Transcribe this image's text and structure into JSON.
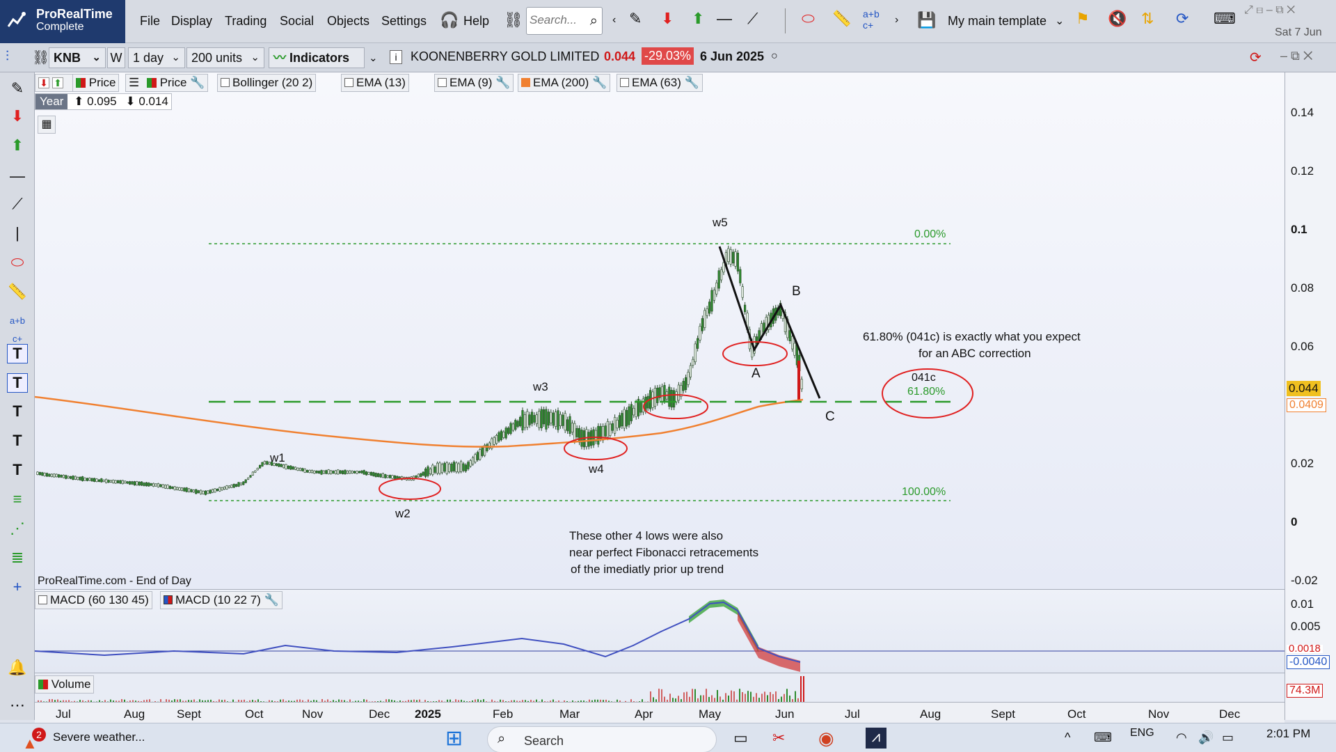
{
  "app": {
    "brand": "ProRealTime",
    "edition": "Complete"
  },
  "menu": [
    "File",
    "Display",
    "Trading",
    "Social",
    "Objects",
    "Settings"
  ],
  "help_label": "Help",
  "search_placeholder": "Search...",
  "template_label": "My main template",
  "date_label": "Sat 7 Jun",
  "toolbar": {
    "ticker": "KNB",
    "period_code": "W",
    "timeframe": "1 day",
    "units": "200 units",
    "indicators_label": "Indicators",
    "instrument_name": "KOONENBERRY GOLD LIMITED",
    "last_price": "0.044",
    "change_pct": "-29.03%",
    "bar_date": "6 Jun 2025"
  },
  "legend": {
    "price1": "Price",
    "price2": "Price",
    "bollinger": "Bollinger (20 2)",
    "ema13": "EMA (13)",
    "ema9": "EMA (9)",
    "ema200": "EMA (200)",
    "ema63": "EMA (63)"
  },
  "range_box": {
    "period": "Year",
    "high": "0.095",
    "low": "0.014"
  },
  "y_ticks": [
    "0.14",
    "0.12",
    "0.1",
    "0.08",
    "0.06",
    "0.02",
    "0",
    "-0.02"
  ],
  "price_tag": "0.044",
  "ema_tag": "0.0409",
  "source_note": "ProRealTime.com - End of Day",
  "annotations": {
    "w1": "w1",
    "w2": "w2",
    "w3": "w3",
    "w4": "w4",
    "w5": "w5",
    "A": "A",
    "B": "B",
    "C": "C",
    "fib_0": "0.00%",
    "fib_618": "61.80%",
    "fib_100": "100.00%",
    "circle_label": "041c",
    "comment1_line1": "61.80% (041c) is exactly what you expect",
    "comment1_line2": "for an ABC correction",
    "comment2_line1": "These other 4 lows were also",
    "comment2_line2": "near perfect Fibonacci retracements",
    "comment2_line3": "of the imediatly prior up trend"
  },
  "macd": {
    "legend1": "MACD (60 130 45)",
    "legend2": "MACD (10 22 7)",
    "y_ticks": [
      "0.01",
      "0.005"
    ],
    "tag1": "0.0018",
    "tag2": "-0.0040"
  },
  "volume": {
    "legend": "Volume",
    "tag": "74.3M"
  },
  "x_ticks": [
    "Jul",
    "Aug",
    "Sept",
    "Oct",
    "Nov",
    "Dec",
    "2025",
    "Feb",
    "Mar",
    "Apr",
    "May",
    "Jun",
    "Jul",
    "Aug",
    "Sept",
    "Oct",
    "Nov",
    "Dec"
  ],
  "taskbar": {
    "weather_badge": "2",
    "weather_text": "Severe weather...",
    "search_label": "Search",
    "lang": "ENG",
    "time": "2:01 PM"
  },
  "colors": {
    "ema200": "#f08030",
    "candle_up": "#2e8b2e",
    "fib_line": "#2a9a2a",
    "ellipse": "#e02020",
    "change_bg": "#e04848"
  }
}
